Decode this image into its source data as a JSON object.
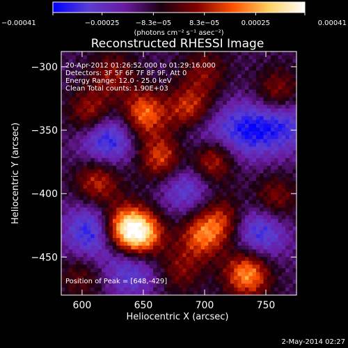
{
  "chart_data": {
    "type": "heatmap",
    "title": "Reconstructed RHESSI Image",
    "xlabel": "Heliocentric X (arcsec)",
    "ylabel": "Heliocentric Y (arcsec)",
    "xlim": [
      583,
      775
    ],
    "ylim": [
      -480,
      -288
    ],
    "x_ticks": [
      600,
      650,
      700,
      750
    ],
    "y_ticks": [
      -300,
      -350,
      -400,
      -450
    ],
    "x_tick_labels": [
      "600",
      "650",
      "700",
      "750"
    ],
    "y_tick_labels": [
      "−300",
      "−350",
      "−400",
      "−450"
    ],
    "colorbar": {
      "vmin": -0.00041,
      "vmax": 0.00041,
      "ticks": [
        -0.00041,
        -0.00025,
        -8.3e-05,
        8.3e-05,
        0.00025,
        0.00041
      ],
      "tick_labels": [
        "−0.00041",
        "−0.00025",
        "−8.3e−05",
        "8.3e−05",
        "0.00025",
        "0.00041"
      ],
      "unit_label": "(photons cm⁻² s⁻¹ asec⁻²)",
      "colormap": [
        "#0000ff",
        "#5a3dd0",
        "#6a1aa0",
        "#1a0010",
        "#800000",
        "#ff5000",
        "#ffd060",
        "#ffffff"
      ]
    },
    "annotations": [
      "20-Apr-2012 01:26:52.000 to 01:29:16.000",
      "Detectors: 3F 5F 6F 7F 8F 9F, Att 0",
      "Energy Range: 12.0 - 25.0 keV",
      "Clean     Total counts: 1.90E+03",
      "Position of Peak = [648,-429]"
    ],
    "peak": [
      648,
      -429
    ],
    "bright_regions": [
      {
        "x": 648,
        "y": -432,
        "value": 0.00041
      },
      {
        "x": 633,
        "y": -427,
        "value": 0.00033
      },
      {
        "x": 735,
        "y": -463,
        "value": 0.00035
      },
      {
        "x": 698,
        "y": -433,
        "value": 0.00026
      },
      {
        "x": 705,
        "y": -373,
        "value": 0.0003
      },
      {
        "x": 665,
        "y": -372,
        "value": 0.00026
      },
      {
        "x": 650,
        "y": -337,
        "value": 0.0003
      },
      {
        "x": 688,
        "y": -334,
        "value": 0.00025
      },
      {
        "x": 608,
        "y": -337,
        "value": 0.00024
      },
      {
        "x": 613,
        "y": -391,
        "value": 0.00022
      },
      {
        "x": 760,
        "y": -321,
        "value": 0.00018
      },
      {
        "x": 757,
        "y": -405,
        "value": 0.00016
      },
      {
        "x": 715,
        "y": -420,
        "value": 0.00018
      },
      {
        "x": 625,
        "y": -306,
        "value": 0.00014
      },
      {
        "x": 700,
        "y": -304,
        "value": 0.00012
      },
      {
        "x": 600,
        "y": -465,
        "value": 0.0001
      },
      {
        "x": 680,
        "y": -460,
        "value": 0.00012
      }
    ],
    "dark_regions": [
      {
        "x": 620,
        "y": -355,
        "value": -0.00028
      },
      {
        "x": 608,
        "y": -430,
        "value": -0.00025
      },
      {
        "x": 735,
        "y": -350,
        "value": -0.00022
      },
      {
        "x": 745,
        "y": -430,
        "value": -0.00023
      },
      {
        "x": 685,
        "y": -395,
        "value": -0.00018
      },
      {
        "x": 765,
        "y": -345,
        "value": -0.0002
      },
      {
        "x": 640,
        "y": -460,
        "value": -0.00018
      },
      {
        "x": 700,
        "y": -355,
        "value": -0.00016
      }
    ]
  },
  "footer": {
    "date": "2-May-2014 02:27"
  }
}
